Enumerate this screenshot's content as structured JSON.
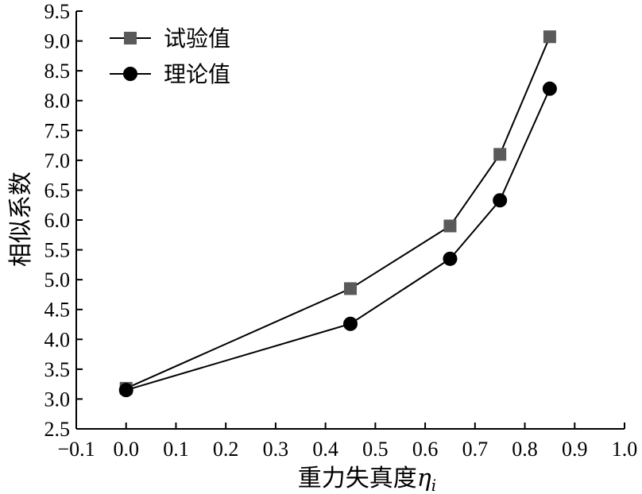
{
  "chart_data": {
    "type": "line",
    "xlabel": "重力失真度",
    "xlabel_symbol": "η",
    "xlabel_subscript": "i",
    "ylabel": "相似系数",
    "xlim": [
      -0.1,
      1.0
    ],
    "ylim": [
      2.5,
      9.5
    ],
    "xticks": [
      -0.1,
      0.0,
      0.1,
      0.2,
      0.3,
      0.4,
      0.5,
      0.6,
      0.7,
      0.8,
      0.9,
      1.0
    ],
    "xtick_labels": [
      "−0.1",
      "0.0",
      "0.1",
      "0.2",
      "0.3",
      "0.4",
      "0.5",
      "0.6",
      "0.7",
      "0.8",
      "0.9",
      "1.0"
    ],
    "yticks": [
      2.5,
      3.0,
      3.5,
      4.0,
      4.5,
      5.0,
      5.5,
      6.0,
      6.5,
      7.0,
      7.5,
      8.0,
      8.5,
      9.0,
      9.5
    ],
    "ytick_labels": [
      "2.5",
      "3.0",
      "3.5",
      "4.0",
      "4.5",
      "5.0",
      "5.5",
      "6.0",
      "6.5",
      "7.0",
      "7.5",
      "8.0",
      "8.5",
      "9.0",
      "9.5"
    ],
    "grid": false,
    "legend_position": "top-left",
    "series": [
      {
        "name": "试验值",
        "marker": "square",
        "marker_color": "#5a5a5a",
        "line_color": "#000000",
        "x": [
          0.0,
          0.45,
          0.65,
          0.75,
          0.85
        ],
        "y": [
          3.18,
          4.85,
          5.9,
          7.1,
          9.07
        ]
      },
      {
        "name": "理论值",
        "marker": "circle",
        "marker_color": "#000000",
        "line_color": "#000000",
        "x": [
          0.0,
          0.45,
          0.65,
          0.75,
          0.85
        ],
        "y": [
          3.15,
          4.26,
          5.35,
          6.33,
          8.2
        ]
      }
    ]
  }
}
